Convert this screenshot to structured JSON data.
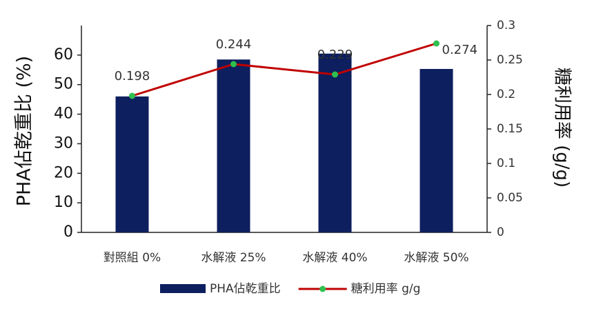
{
  "chart_data": {
    "type": "combo",
    "categories": [
      "對照組 0%",
      "水解液 25%",
      "水解液 40%",
      "水解液 50%"
    ],
    "y_label": "PHA佔乾重比 (%)",
    "y2_label": "糖利用率 (g/g)",
    "ylim": [
      0,
      70
    ],
    "yticks": [
      0,
      10,
      20,
      30,
      40,
      50,
      60
    ],
    "y2lim": [
      0,
      0.3
    ],
    "y2ticks": [
      0,
      0.05,
      0.1,
      0.15,
      0.2,
      0.25,
      0.3
    ],
    "legend": "bottom",
    "series": [
      {
        "name": "PHA佔乾重比",
        "type": "bar",
        "color": "#0d1f5e",
        "values": [
          46,
          58.5,
          60.5,
          55.3
        ]
      },
      {
        "name": "糖利用率 g/g",
        "type": "line",
        "axis": "y2",
        "color": "#c00000",
        "marker_color": "#2fbf4f",
        "data_labels": true,
        "values": [
          0.198,
          0.244,
          0.229,
          0.274
        ]
      }
    ]
  }
}
